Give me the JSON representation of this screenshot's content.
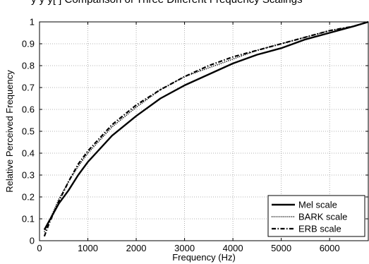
{
  "page_title": "y y y[ ] Comparison of Three Different Frequency Scalings",
  "chart_data": {
    "type": "line",
    "title": "Comparison of Three Different Frequency Scalings",
    "xlabel": "Frequency (Hz)",
    "ylabel": "Relative Perceived Frequency",
    "xlim": [
      0,
      6800
    ],
    "ylim": [
      0,
      1
    ],
    "xticks": [
      0,
      1000,
      2000,
      3000,
      4000,
      5000,
      6000
    ],
    "yticks": [
      0,
      0.1,
      0.2,
      0.3,
      0.4,
      0.5,
      0.6,
      0.7,
      0.8,
      0.9,
      1
    ],
    "xtick_labels": [
      "0",
      "1000",
      "2000",
      "3000",
      "4000",
      "5000",
      "6000"
    ],
    "ytick_labels": [
      "0",
      "0.1",
      "0.2",
      "0.3",
      "0.4",
      "0.5",
      "0.6",
      "0.7",
      "0.8",
      "0.9",
      "1"
    ],
    "grid": true,
    "legend_position": "bottom-right",
    "series": [
      {
        "name": "Mel scale",
        "style": "solid",
        "x": [
          100,
          200,
          400,
          600,
          800,
          1000,
          1500,
          2000,
          2500,
          3000,
          3500,
          4000,
          4500,
          5000,
          5500,
          6000,
          6500,
          6800
        ],
        "y": [
          0.05,
          0.09,
          0.17,
          0.23,
          0.3,
          0.36,
          0.48,
          0.57,
          0.65,
          0.71,
          0.76,
          0.81,
          0.85,
          0.88,
          0.92,
          0.95,
          0.98,
          1.0
        ]
      },
      {
        "name": "BARK scale",
        "style": "dotted",
        "x": [
          100,
          200,
          400,
          600,
          800,
          1000,
          1500,
          2000,
          2500,
          3000,
          3500,
          4000,
          4500,
          5000,
          5500,
          6000,
          6500,
          6800
        ],
        "y": [
          0.04,
          0.09,
          0.19,
          0.27,
          0.34,
          0.4,
          0.52,
          0.61,
          0.69,
          0.75,
          0.79,
          0.83,
          0.87,
          0.9,
          0.93,
          0.96,
          0.98,
          1.0
        ]
      },
      {
        "name": "ERB scale",
        "style": "dashdot",
        "x": [
          100,
          200,
          400,
          600,
          800,
          1000,
          1500,
          2000,
          2500,
          3000,
          3500,
          4000,
          4500,
          5000,
          5500,
          6000,
          6500,
          6800
        ],
        "y": [
          0.02,
          0.08,
          0.18,
          0.27,
          0.35,
          0.41,
          0.53,
          0.62,
          0.69,
          0.75,
          0.8,
          0.84,
          0.87,
          0.9,
          0.93,
          0.96,
          0.98,
          1.0
        ]
      }
    ]
  }
}
